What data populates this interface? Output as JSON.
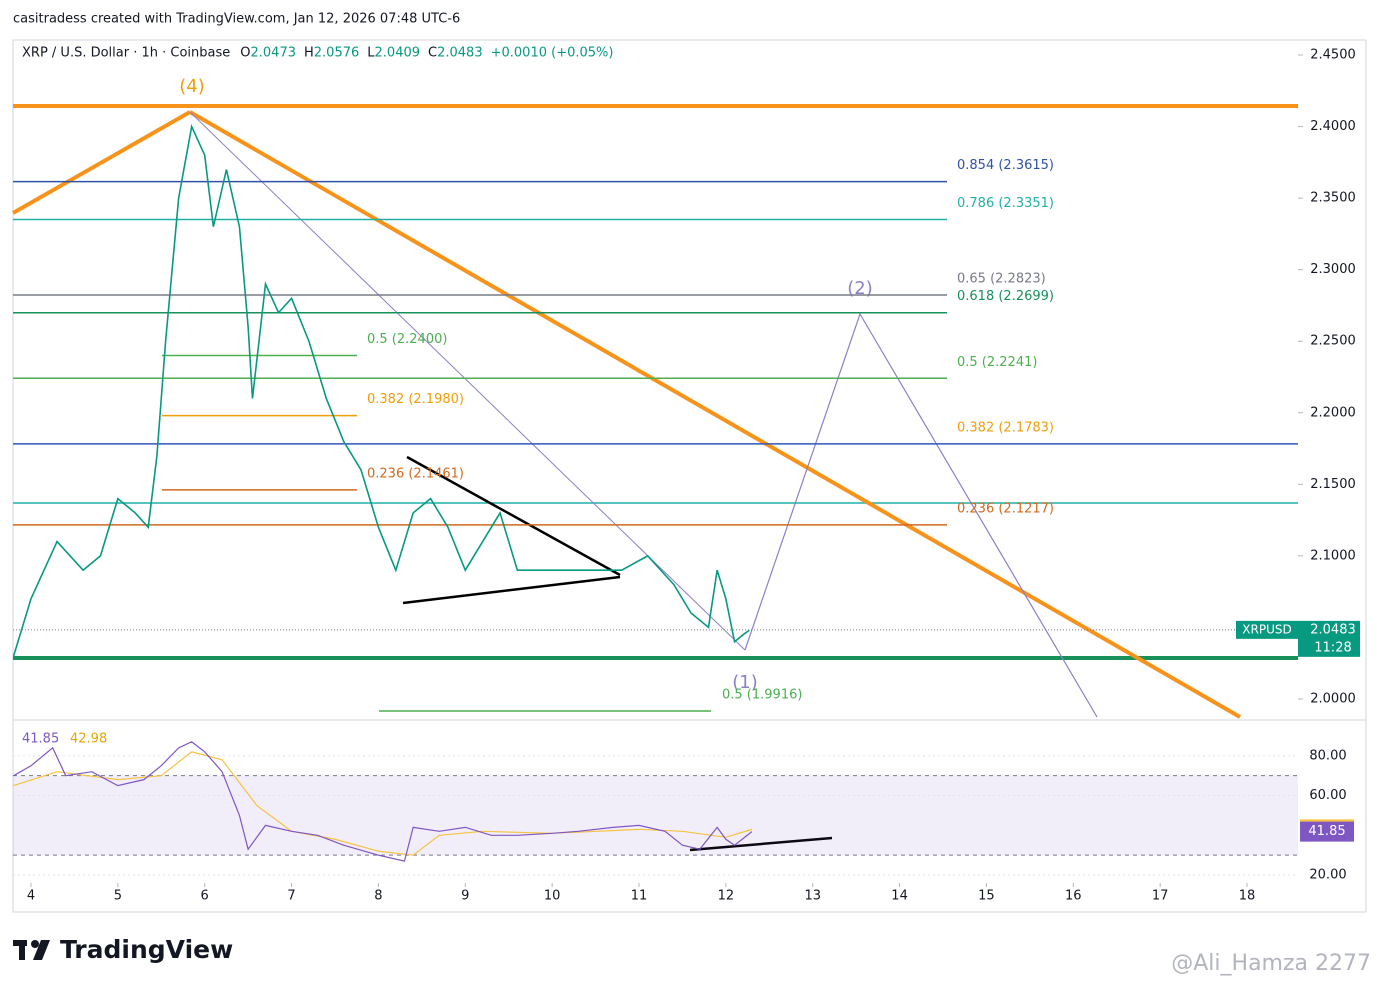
{
  "header": {
    "credit": "casitradess created with TradingView.com, Jan 12, 2026 07:48 UTC-6"
  },
  "chart_data": {
    "type": "line",
    "symbol": "XRP / U.S. Dollar · 1h · Coinbase",
    "ohlc": [
      {
        "label": "O",
        "value": 2.0473
      },
      {
        "label": "H",
        "value": 2.0576
      },
      {
        "label": "L",
        "value": 2.0409
      },
      {
        "label": "C",
        "value": 2.0483
      }
    ],
    "change": "+0.0010 (+0.05%)",
    "color": "#089981",
    "x": [
      3.8,
      4.0,
      4.3,
      4.6,
      4.8,
      5.0,
      5.2,
      5.35,
      5.45,
      5.55,
      5.7,
      5.85,
      6.0,
      6.1,
      6.25,
      6.4,
      6.5,
      6.55,
      6.7,
      6.85,
      7.0,
      7.2,
      7.4,
      7.6,
      7.8,
      8.0,
      8.2,
      8.4,
      8.6,
      8.8,
      9.0,
      9.2,
      9.4,
      9.6,
      9.9,
      10.2,
      10.5,
      10.8,
      11.1,
      11.4,
      11.6,
      11.8,
      11.9,
      12.0,
      12.1,
      12.2,
      12.27
    ],
    "values": [
      2.03,
      2.07,
      2.11,
      2.09,
      2.1,
      2.14,
      2.13,
      2.12,
      2.17,
      2.25,
      2.35,
      2.4,
      2.38,
      2.33,
      2.37,
      2.33,
      2.26,
      2.21,
      2.29,
      2.27,
      2.28,
      2.25,
      2.21,
      2.18,
      2.16,
      2.12,
      2.09,
      2.13,
      2.14,
      2.12,
      2.09,
      2.11,
      2.13,
      2.09,
      2.09,
      2.09,
      2.09,
      2.09,
      2.1,
      2.08,
      2.06,
      2.05,
      2.09,
      2.07,
      2.04,
      2.045,
      2.048
    ],
    "xlim": [
      3.793,
      18.587
    ],
    "xticks": [
      4,
      5,
      6,
      7,
      8,
      9,
      10,
      11,
      12,
      13,
      14,
      15,
      16,
      17,
      18
    ],
    "ylim": [
      1.9867,
      2.4605
    ],
    "yticks": [
      {
        "value": 2.0,
        "label": "2.0000"
      },
      {
        "value": 2.05,
        "label": "2.0500"
      },
      {
        "value": 2.1,
        "label": "2.1000"
      },
      {
        "value": 2.15,
        "label": "2.1500"
      },
      {
        "value": 2.2,
        "label": "2.2000"
      },
      {
        "value": 2.25,
        "label": "2.2500"
      },
      {
        "value": 2.3,
        "label": "2.3000"
      },
      {
        "value": 2.35,
        "label": "2.3500"
      },
      {
        "value": 2.4,
        "label": "2.4000"
      },
      {
        "value": 2.45,
        "label": "2.4500"
      }
    ],
    "last_price": {
      "name": "XRPUSD",
      "value": 2.0483,
      "countdown": "11:28"
    },
    "fib_main": [
      {
        "label": "0.854 (2.3615)",
        "price": 2.3615,
        "color": "#2f52a8"
      },
      {
        "label": "0.786 (2.3351)",
        "price": 2.3351,
        "color": "#1fb0a6"
      },
      {
        "label": "0.65 (2.2823)",
        "price": 2.2823,
        "color": "#787b86"
      },
      {
        "label": "0.618 (2.2699)",
        "price": 2.2699,
        "color": "#18905a"
      },
      {
        "label": "0.5 (2.2241)",
        "price": 2.2241,
        "color": "#4caf50"
      },
      {
        "label": "0.382 (2.1783)",
        "price": 2.1783,
        "color": "#f29d0a",
        "line_color": "#3355b8",
        "extend_right": true
      },
      {
        "label": "0.236 (2.1217)",
        "price": 2.1217,
        "color": "#d2691e"
      }
    ],
    "fib_short": [
      {
        "label": "0.5 (2.2400)",
        "price": 2.24,
        "color": "#4caf50"
      },
      {
        "label": "0.382 (2.1980)",
        "price": 2.198,
        "color": "#f29d0a"
      },
      {
        "label": "0.236 (2.1461)",
        "price": 2.1461,
        "color": "#d2691e"
      }
    ],
    "fib_low": [
      {
        "label": "0.5 (1.9916)",
        "price": 1.9916,
        "color": "#4caf50"
      }
    ],
    "waves": [
      "(4)",
      "(2)",
      "(1)"
    ],
    "rsi": {
      "values": [
        70,
        75,
        84,
        70,
        72,
        65,
        68,
        75,
        84,
        87,
        82,
        72,
        50,
        33,
        45,
        42,
        40,
        35,
        30,
        27,
        44,
        42,
        44,
        40,
        40,
        41,
        42,
        44,
        45,
        42,
        35,
        33,
        44,
        38,
        35,
        41.85
      ],
      "x": [
        3.8,
        4.0,
        4.25,
        4.4,
        4.7,
        5.0,
        5.3,
        5.5,
        5.7,
        5.85,
        6.0,
        6.2,
        6.4,
        6.5,
        6.7,
        7.0,
        7.3,
        7.6,
        8.0,
        8.3,
        8.4,
        8.7,
        9.0,
        9.3,
        9.6,
        10.0,
        10.3,
        10.7,
        11.0,
        11.3,
        11.5,
        11.7,
        11.9,
        12.0,
        12.1,
        12.3
      ],
      "color": "#7e57c2",
      "ma_x": [
        3.8,
        4.3,
        5.0,
        5.5,
        5.85,
        6.2,
        6.6,
        7.0,
        7.5,
        8.0,
        8.4,
        8.7,
        9.2,
        10.0,
        11.0,
        11.5,
        12.0,
        12.3
      ],
      "ma_values": [
        65,
        72,
        68,
        70,
        82,
        78,
        55,
        42,
        38,
        32,
        30,
        40,
        42,
        41,
        43,
        42,
        39,
        42.98
      ],
      "ma_color": "#f5c242",
      "ylim": [
        16,
        97
      ],
      "yticks": [
        {
          "value": 20,
          "label": "20.00"
        },
        {
          "value": 60,
          "label": "60.00"
        },
        {
          "value": 80,
          "label": "80.00"
        }
      ],
      "band": [
        30,
        70
      ]
    }
  },
  "footer": {
    "logo": "TradingView",
    "watermark": "@Ali_Hamza 2277"
  }
}
